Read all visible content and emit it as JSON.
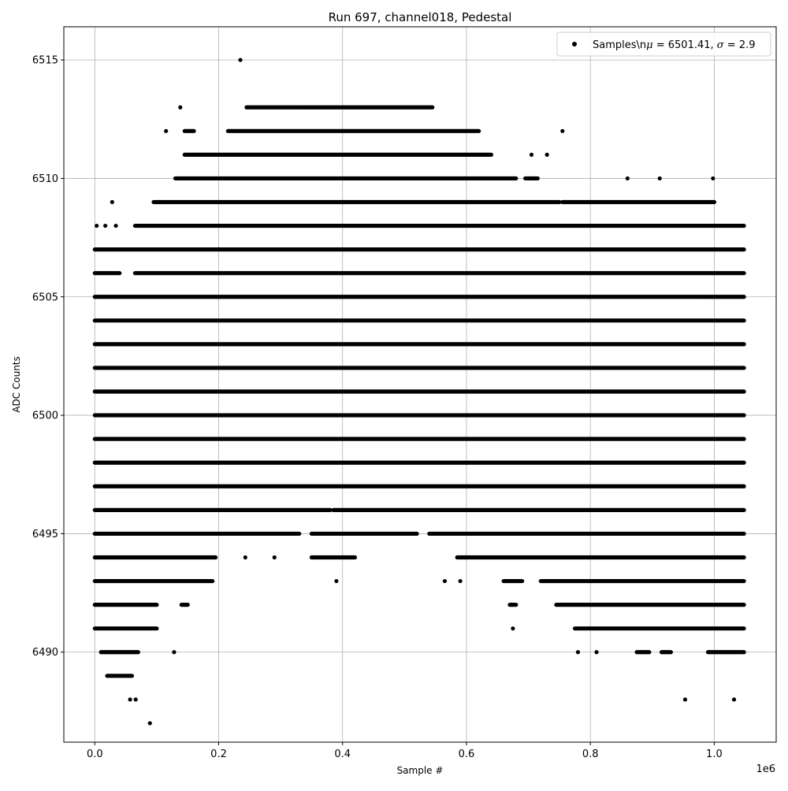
{
  "chart_data": {
    "type": "scatter",
    "title": "Run 697, channel018, Pedestal",
    "xlabel": "Sample #",
    "ylabel": "ADC Counts",
    "x_offset_text": "1e6",
    "xlim": [
      -50000,
      1100000
    ],
    "ylim": [
      6486.2,
      6516.4
    ],
    "x_ticks": [
      {
        "value": 0,
        "label": "0.0"
      },
      {
        "value": 200000,
        "label": "0.2"
      },
      {
        "value": 400000,
        "label": "0.4"
      },
      {
        "value": 600000,
        "label": "0.6"
      },
      {
        "value": 800000,
        "label": "0.8"
      },
      {
        "value": 1000000,
        "label": "1.0"
      }
    ],
    "y_ticks": [
      {
        "value": 6490,
        "label": "6490"
      },
      {
        "value": 6495,
        "label": "6495"
      },
      {
        "value": 6500,
        "label": "6500"
      },
      {
        "value": 6505,
        "label": "6505"
      },
      {
        "value": 6510,
        "label": "6510"
      },
      {
        "value": 6515,
        "label": "6515"
      }
    ],
    "grid": true,
    "legend": {
      "placement": "top-right",
      "label": "Samples\\n",
      "mu_symbol": "μ",
      "middle": " = 6501.41, ",
      "sigma_symbol": "σ",
      "tail": " = 2.9"
    },
    "series": [
      {
        "label": "Samples",
        "color": "#000000",
        "marker": "dot",
        "bands": [
          {
            "y": 6487,
            "x": [
              [
                89000,
                89000
              ]
            ]
          },
          {
            "y": 6488,
            "x": [
              [
                57000,
                57000
              ],
              [
                66000,
                66000
              ],
              [
                953000,
                953000
              ],
              [
                1032000,
                1032000
              ]
            ]
          },
          {
            "y": 6489,
            "x": [
              [
                20000,
                60000
              ]
            ]
          },
          {
            "y": 6490,
            "x": [
              [
                10000,
                70000
              ],
              [
                128000,
                128000
              ],
              [
                780000,
                780000
              ],
              [
                810000,
                810000
              ],
              [
                875000,
                895000
              ],
              [
                915000,
                930000
              ],
              [
                990000,
                1048000
              ]
            ]
          },
          {
            "y": 6491,
            "x": [
              [
                0,
                100000
              ],
              [
                675000,
                675000
              ],
              [
                775000,
                1048000
              ]
            ]
          },
          {
            "y": 6492,
            "x": [
              [
                0,
                100000
              ],
              [
                140000,
                150000
              ],
              [
                670000,
                680000
              ],
              [
                745000,
                1048000
              ]
            ]
          },
          {
            "y": 6493,
            "x": [
              [
                0,
                190000
              ],
              [
                390000,
                390000
              ],
              [
                565000,
                565000
              ],
              [
                590000,
                590000
              ],
              [
                660000,
                690000
              ],
              [
                720000,
                1048000
              ]
            ]
          },
          {
            "y": 6494,
            "x": [
              [
                0,
                195000
              ],
              [
                243000,
                243000
              ],
              [
                290000,
                290000
              ],
              [
                350000,
                420000
              ],
              [
                585000,
                1048000
              ]
            ]
          },
          {
            "y": 6495,
            "x": [
              [
                0,
                330000
              ],
              [
                350000,
                520000
              ],
              [
                540000,
                1048000
              ]
            ]
          },
          {
            "y": 6496,
            "x": [
              [
                0,
                380000
              ],
              [
                385000,
                1048000
              ]
            ]
          },
          {
            "y": 6497,
            "x": [
              [
                0,
                1048000
              ]
            ]
          },
          {
            "y": 6498,
            "x": [
              [
                0,
                1048000
              ]
            ]
          },
          {
            "y": 6499,
            "x": [
              [
                0,
                1048000
              ]
            ]
          },
          {
            "y": 6500,
            "x": [
              [
                0,
                1048000
              ]
            ]
          },
          {
            "y": 6501,
            "x": [
              [
                0,
                1048000
              ]
            ]
          },
          {
            "y": 6502,
            "x": [
              [
                0,
                1048000
              ]
            ]
          },
          {
            "y": 6503,
            "x": [
              [
                0,
                1048000
              ]
            ]
          },
          {
            "y": 6504,
            "x": [
              [
                0,
                1048000
              ]
            ]
          },
          {
            "y": 6505,
            "x": [
              [
                0,
                1048000
              ]
            ]
          },
          {
            "y": 6506,
            "x": [
              [
                0,
                40000
              ],
              [
                65000,
                1048000
              ]
            ]
          },
          {
            "y": 6507,
            "x": [
              [
                0,
                1048000
              ]
            ]
          },
          {
            "y": 6508,
            "x": [
              [
                3000,
                3000
              ],
              [
                17000,
                17000
              ],
              [
                34000,
                34000
              ],
              [
                65000,
                100000
              ],
              [
                100000,
                1048000
              ]
            ]
          },
          {
            "y": 6509,
            "x": [
              [
                28000,
                28000
              ],
              [
                95000,
                750000
              ],
              [
                755000,
                1000000
              ]
            ]
          },
          {
            "y": 6510,
            "x": [
              [
                130000,
                680000
              ],
              [
                695000,
                715000
              ],
              [
                860000,
                860000
              ],
              [
                912000,
                912000
              ],
              [
                998000,
                998000
              ]
            ]
          },
          {
            "y": 6511,
            "x": [
              [
                145000,
                640000
              ],
              [
                705000,
                705000
              ],
              [
                730000,
                730000
              ]
            ]
          },
          {
            "y": 6512,
            "x": [
              [
                115000,
                115000
              ],
              [
                145000,
                160000
              ],
              [
                215000,
                620000
              ],
              [
                755000,
                755000
              ]
            ]
          },
          {
            "y": 6513,
            "x": [
              [
                138000,
                138000
              ],
              [
                245000,
                545000
              ]
            ]
          },
          {
            "y": 6515,
            "x": [
              [
                235000,
                235000
              ]
            ]
          }
        ]
      }
    ]
  }
}
